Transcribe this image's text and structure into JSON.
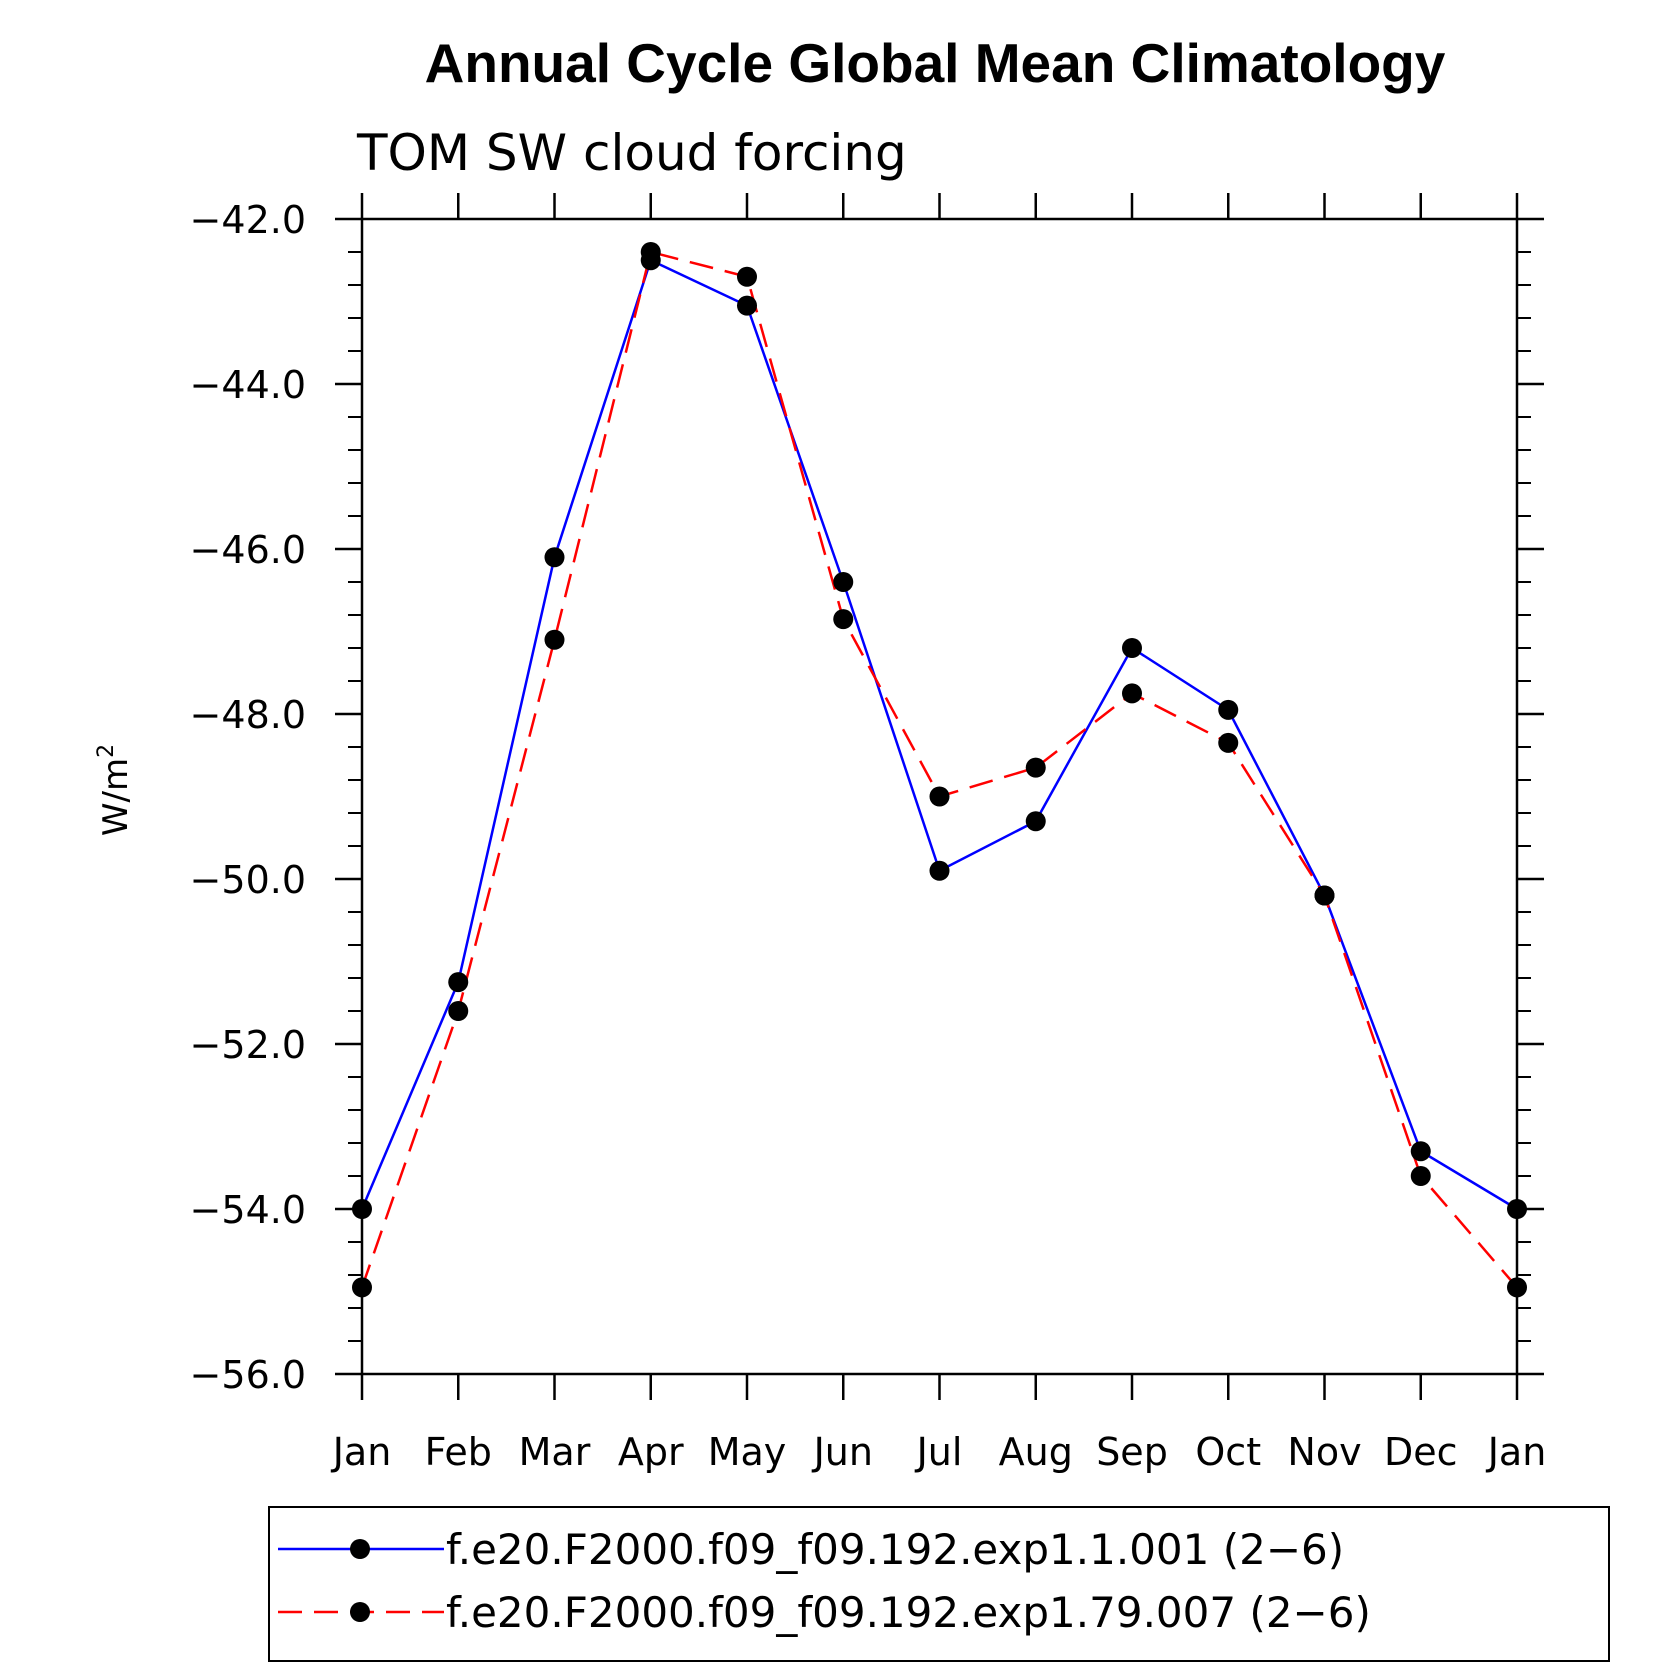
{
  "chart_data": {
    "type": "line",
    "title": "Annual Cycle Global Mean Climatology",
    "subtitle": "TOM SW cloud forcing",
    "ylabel": "W/m",
    "ylabel_sup": "2",
    "categories": [
      "Jan",
      "Feb",
      "Mar",
      "Apr",
      "May",
      "Jun",
      "Jul",
      "Aug",
      "Sep",
      "Oct",
      "Nov",
      "Dec",
      "Jan"
    ],
    "ylim": [
      -56.0,
      -42.0
    ],
    "yticks": [
      -42.0,
      -44.0,
      -46.0,
      -48.0,
      -50.0,
      -52.0,
      -54.0,
      -56.0
    ],
    "ytick_labels": [
      "−42.0",
      "−44.0",
      "−46.0",
      "−48.0",
      "−50.0",
      "−52.0",
      "−54.0",
      "−56.0"
    ],
    "legend_position": "bottom",
    "series": [
      {
        "name": "f.e20.F2000.f09_f09.192.exp1.1.001 (2−6)",
        "color": "#0000ff",
        "dash": "solid",
        "marker": "filled-circle",
        "values": [
          -54.0,
          -51.25,
          -46.1,
          -42.5,
          -43.05,
          -46.4,
          -49.9,
          -49.3,
          -47.2,
          -47.95,
          -50.2,
          -53.3,
          -54.0
        ]
      },
      {
        "name": "f.e20.F2000.f09_f09.192.exp1.79.007 (2−6)",
        "color": "#ff0000",
        "dash": "dashed",
        "marker": "filled-circle",
        "values": [
          -54.95,
          -51.6,
          -47.1,
          -42.4,
          -42.7,
          -46.85,
          -49.0,
          -48.65,
          -47.75,
          -48.35,
          -50.2,
          -53.6,
          -54.95
        ]
      }
    ]
  }
}
